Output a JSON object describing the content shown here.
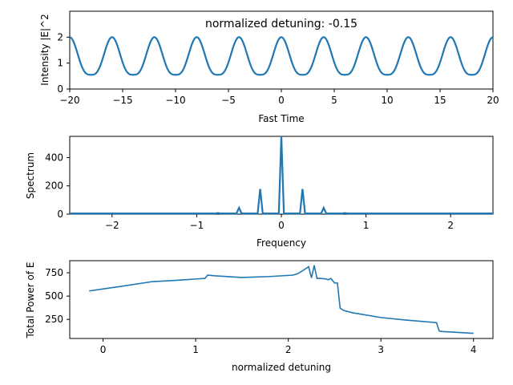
{
  "chart_data": [
    {
      "type": "line",
      "title": "normalized detuning: -0.15",
      "xlabel": "Fast Time",
      "ylabel": "Intensity |E|^2",
      "xlim": [
        -20,
        20
      ],
      "ylim": [
        0,
        3
      ],
      "xticks": [
        -20,
        -15,
        -10,
        -5,
        0,
        5,
        10,
        15,
        20
      ],
      "yticks": [
        0,
        1,
        2
      ],
      "grid": false,
      "series": [
        {
          "color": "#1f77b4",
          "form": "periodic",
          "period": 4,
          "peak_at": 0,
          "min": 0.55,
          "max": 2.0
        }
      ]
    },
    {
      "type": "line",
      "title": "",
      "xlabel": "Frequency",
      "ylabel": "Spectrum",
      "xlim": [
        -2.5,
        2.5
      ],
      "ylim": [
        0,
        550
      ],
      "xticks": [
        -2,
        -1,
        0,
        1,
        2
      ],
      "yticks": [
        0,
        200,
        400
      ],
      "grid": false,
      "baseline": 5,
      "series": [
        {
          "color": "#1f77b4",
          "peaks": [
            {
              "x": -0.75,
              "y": 8
            },
            {
              "x": -0.5,
              "y": 45
            },
            {
              "x": -0.25,
              "y": 178
            },
            {
              "x": 0,
              "y": 550
            },
            {
              "x": 0.25,
              "y": 178
            },
            {
              "x": 0.5,
              "y": 45
            },
            {
              "x": 0.75,
              "y": 8
            }
          ]
        }
      ]
    },
    {
      "type": "line",
      "title": "",
      "xlabel": "normalized detuning",
      "ylabel": "Total Power of E",
      "xlim": [
        -0.36,
        4.21
      ],
      "ylim": [
        45,
        880
      ],
      "xticks": [
        0,
        1,
        2,
        3,
        4
      ],
      "yticks": [
        250,
        500,
        750
      ],
      "grid": false,
      "series": [
        {
          "color": "#1f77b4",
          "x": [
            -0.15,
            0.2,
            0.53,
            0.8,
            1.1,
            1.13,
            1.2,
            1.5,
            1.8,
            2.05,
            2.1,
            2.15,
            2.22,
            2.25,
            2.28,
            2.31,
            2.34,
            2.4,
            2.43,
            2.46,
            2.5,
            2.53,
            2.56,
            2.6,
            2.7,
            3.0,
            3.3,
            3.6,
            3.63,
            3.66,
            4.0
          ],
          "y": [
            555,
            605,
            655,
            670,
            690,
            725,
            718,
            700,
            710,
            725,
            740,
            770,
            815,
            695,
            830,
            690,
            690,
            685,
            675,
            690,
            640,
            640,
            370,
            345,
            320,
            270,
            240,
            215,
            125,
            120,
            100
          ]
        }
      ]
    }
  ]
}
